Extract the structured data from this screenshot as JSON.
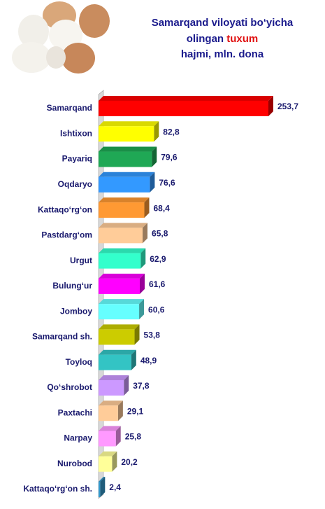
{
  "chart_data": {
    "type": "bar",
    "orientation": "horizontal",
    "title": {
      "line1": "Samarqand viloyati bo‘yicha",
      "line2": "olingan",
      "highlight": "tuxum",
      "line3": "hajmi, mln. dona"
    },
    "categories": [
      "Samarqand",
      "Ishtixon",
      "Payariq",
      "Oqdaryo",
      "Kattaqo‘rg‘on",
      "Pastdarg‘om",
      "Urgut",
      "Bulung‘ur",
      "Jomboy",
      "Samarqand sh.",
      "Toyloq",
      "Qo‘shrobot",
      "Paxtachi",
      "Narpay",
      "Nurobod",
      "Kattaqo‘rg‘on sh."
    ],
    "values": [
      253.7,
      82.8,
      79.6,
      76.6,
      68.4,
      65.8,
      62.9,
      61.6,
      60.6,
      53.8,
      48.9,
      37.8,
      29.1,
      25.8,
      20.2,
      2.4
    ],
    "value_labels": [
      "253,7",
      "82,8",
      "79,6",
      "76,6",
      "68,4",
      "65,8",
      "62,9",
      "61,6",
      "60,6",
      "53,8",
      "48,9",
      "37,8",
      "29,1",
      "25,8",
      "20,2",
      "2,4"
    ],
    "colors": [
      "#ff0000",
      "#ffff00",
      "#1fa855",
      "#3399ff",
      "#ff9933",
      "#ffcc99",
      "#33ffcc",
      "#ff00ff",
      "#66ffff",
      "#cccc00",
      "#33c4c4",
      "#cc99ff",
      "#ffcc99",
      "#ff99ff",
      "#ffff99",
      "#3399cc"
    ]
  }
}
